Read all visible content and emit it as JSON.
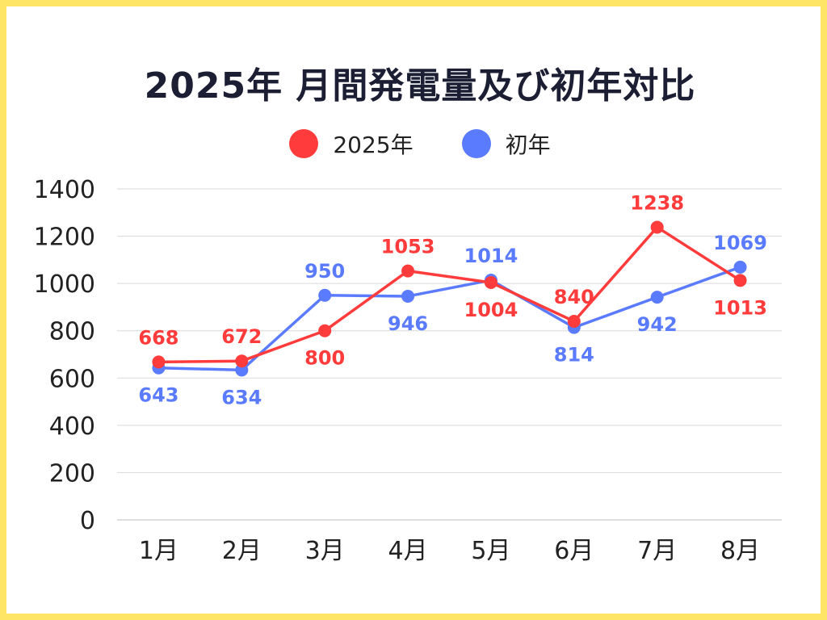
{
  "title": "2025年 月間発電量及び初年対比",
  "colors": {
    "series_2025": "#ff3b3b",
    "series_first": "#5b7bff",
    "border": "#ffe566",
    "grid": "#d9d9d9"
  },
  "chart_data": {
    "type": "line",
    "title": "2025年 月間発電量及び初年対比",
    "categories": [
      "1月",
      "2月",
      "3月",
      "4月",
      "5月",
      "6月",
      "7月",
      "8月"
    ],
    "series": [
      {
        "name": "2025年",
        "values": [
          668,
          672,
          800,
          1053,
          1004,
          840,
          1238,
          1013
        ]
      },
      {
        "name": "初年",
        "values": [
          643,
          634,
          950,
          946,
          1014,
          814,
          942,
          1069
        ]
      }
    ],
    "ylim": [
      0,
      1400
    ],
    "yticks": [
      0,
      200,
      400,
      600,
      800,
      1000,
      1200,
      1400
    ],
    "grid": true,
    "legend": "top-center",
    "xlabel": "",
    "ylabel": ""
  }
}
